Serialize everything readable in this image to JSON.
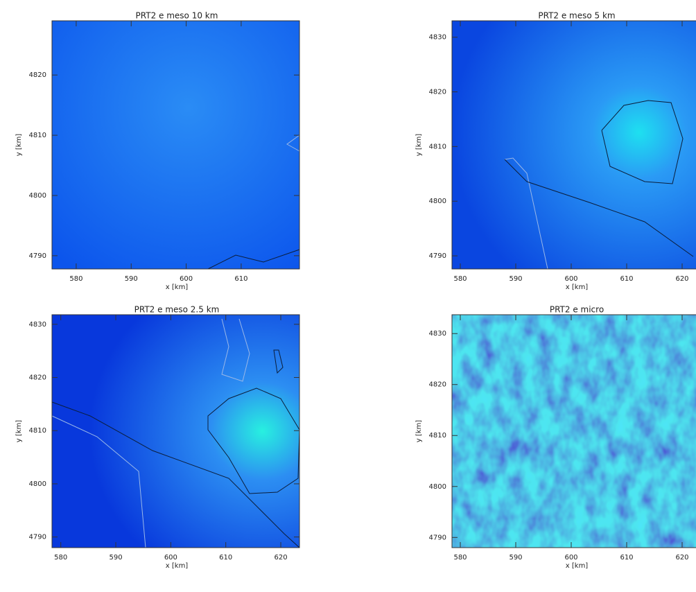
{
  "chart_data": [
    {
      "type": "contour",
      "title": "PRT2 e meso 10 km",
      "xlabel": "x [km]",
      "ylabel": "y [km]",
      "xlim": [
        575.6,
        620.6
      ],
      "ylim": [
        4787.8,
        4829
      ],
      "xticks": [
        580,
        590,
        600,
        610
      ],
      "yticks": [
        4790,
        4800,
        4810,
        4820
      ]
    },
    {
      "type": "contour",
      "title": "PRT2 e meso 5 km",
      "xlabel": "x [km]",
      "ylabel": "y [km]",
      "xlim": [
        578.5,
        623.5
      ],
      "ylim": [
        4787.6,
        4833
      ],
      "xticks": [
        580,
        590,
        600,
        610,
        620
      ],
      "yticks": [
        4790,
        4800,
        4810,
        4820,
        4830
      ]
    },
    {
      "type": "contour",
      "title": "PRT2 e meso 2.5 km",
      "xlabel": "x [km]",
      "ylabel": "y [km]",
      "xlim": [
        578.4,
        623.4
      ],
      "ylim": [
        4788,
        4831.8
      ],
      "xticks": [
        580,
        590,
        600,
        610,
        620
      ],
      "yticks": [
        4790,
        4800,
        4810,
        4820,
        4830
      ]
    },
    {
      "type": "contour",
      "title": "PRT2 e micro",
      "xlabel": "x [km]",
      "ylabel": "y [km]",
      "xlim": [
        578.5,
        623.5
      ],
      "ylim": [
        4788,
        4833.7
      ],
      "xticks": [
        580,
        590,
        600,
        610,
        620
      ],
      "yticks": [
        4790,
        4800,
        4810,
        4820,
        4830
      ]
    }
  ]
}
